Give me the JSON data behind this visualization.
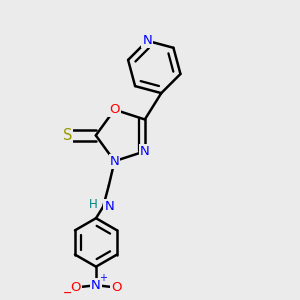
{
  "bg_color": "#ebebeb",
  "bond_color": "#000000",
  "bond_width": 1.8,
  "atom_colors": {
    "N": "#0000ff",
    "O": "#ff0000",
    "S": "#999900",
    "H": "#008080",
    "C": "#000000"
  },
  "font_size": 9.5,
  "xlim": [
    0.0,
    1.0
  ],
  "ylim": [
    0.0,
    1.0
  ]
}
